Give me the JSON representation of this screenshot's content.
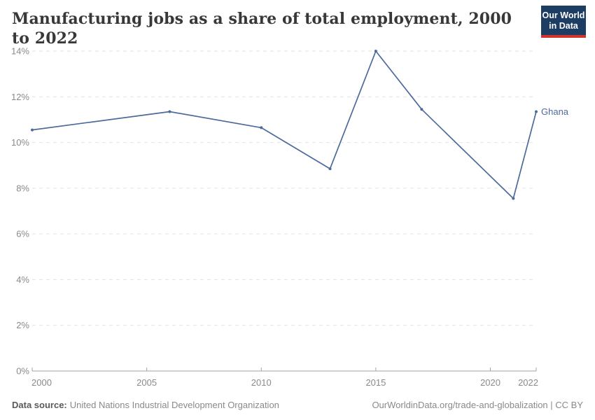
{
  "header": {
    "title": "Manufacturing jobs as a share of total employment, 2000 to 2022"
  },
  "logo": {
    "line1": "Our World",
    "line2": "in Data"
  },
  "chart_data": {
    "type": "line",
    "title": "Manufacturing jobs as a share of total employment, 2000 to 2022",
    "x": [
      2000,
      2006,
      2010,
      2013,
      2015,
      2017,
      2021,
      2022
    ],
    "series": [
      {
        "name": "Ghana",
        "color": "#4c6a9c",
        "values": [
          10.55,
          11.35,
          10.65,
          8.85,
          14.0,
          11.45,
          7.55,
          11.35
        ]
      }
    ],
    "xlabel": "",
    "ylabel": "",
    "xlim": [
      2000,
      2022
    ],
    "ylim": [
      0,
      14
    ],
    "xticks": [
      2000,
      2005,
      2010,
      2015,
      2020,
      2022
    ],
    "ytick_values": [
      0,
      2,
      4,
      6,
      8,
      10,
      12,
      14
    ],
    "yticks": [
      "0%",
      "2%",
      "4%",
      "6%",
      "8%",
      "10%",
      "12%",
      "14%"
    ],
    "grid": "horizontal-dashed",
    "legend_position": "end-of-line",
    "end_label": "Ghana"
  },
  "footer": {
    "datasource_label": "Data source:",
    "datasource_value": "United Nations Industrial Development Organization",
    "credit": "OurWorldinData.org/trade-and-globalization | CC BY"
  },
  "colors": {
    "line": "#4c6a9c",
    "logo-bg": "#1d3d63",
    "logo-red": "#d0342c",
    "grid": "#e2e2e2",
    "axis": "#a3a3a3",
    "tick-text": "#8a8a8a"
  }
}
